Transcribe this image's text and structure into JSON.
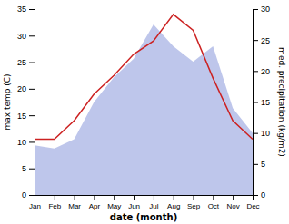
{
  "chart_data": {
    "type": "line",
    "x_label": "date (month)",
    "y_label": "max temp (C)",
    "y2_label": "med. precipitation (kg/m2)",
    "categories": [
      "Jan",
      "Feb",
      "Mar",
      "Apr",
      "May",
      "Jun",
      "Jul",
      "Aug",
      "Sep",
      "Oct",
      "Nov",
      "Dec"
    ],
    "series": [
      {
        "type": "area",
        "axis": "y2",
        "color": "#b3bce8",
        "values": [
          8.0,
          7.5,
          9.0,
          15.0,
          19.0,
          22.0,
          27.5,
          24.0,
          21.5,
          24.0,
          14.0,
          10.0
        ]
      },
      {
        "type": "line",
        "color": "#cc2222",
        "values": [
          10.5,
          10.5,
          14.0,
          19.0,
          22.5,
          26.5,
          29.0,
          34.0,
          31.0,
          22.0,
          14.0,
          10.5
        ]
      }
    ],
    "ylim": [
      0,
      35
    ],
    "yticks": [
      0,
      5,
      10,
      15,
      20,
      25,
      30,
      35
    ],
    "y2lim": [
      0,
      30
    ],
    "y2ticks": [
      0,
      5,
      10,
      15,
      20,
      25,
      30
    ],
    "grid": false
  }
}
